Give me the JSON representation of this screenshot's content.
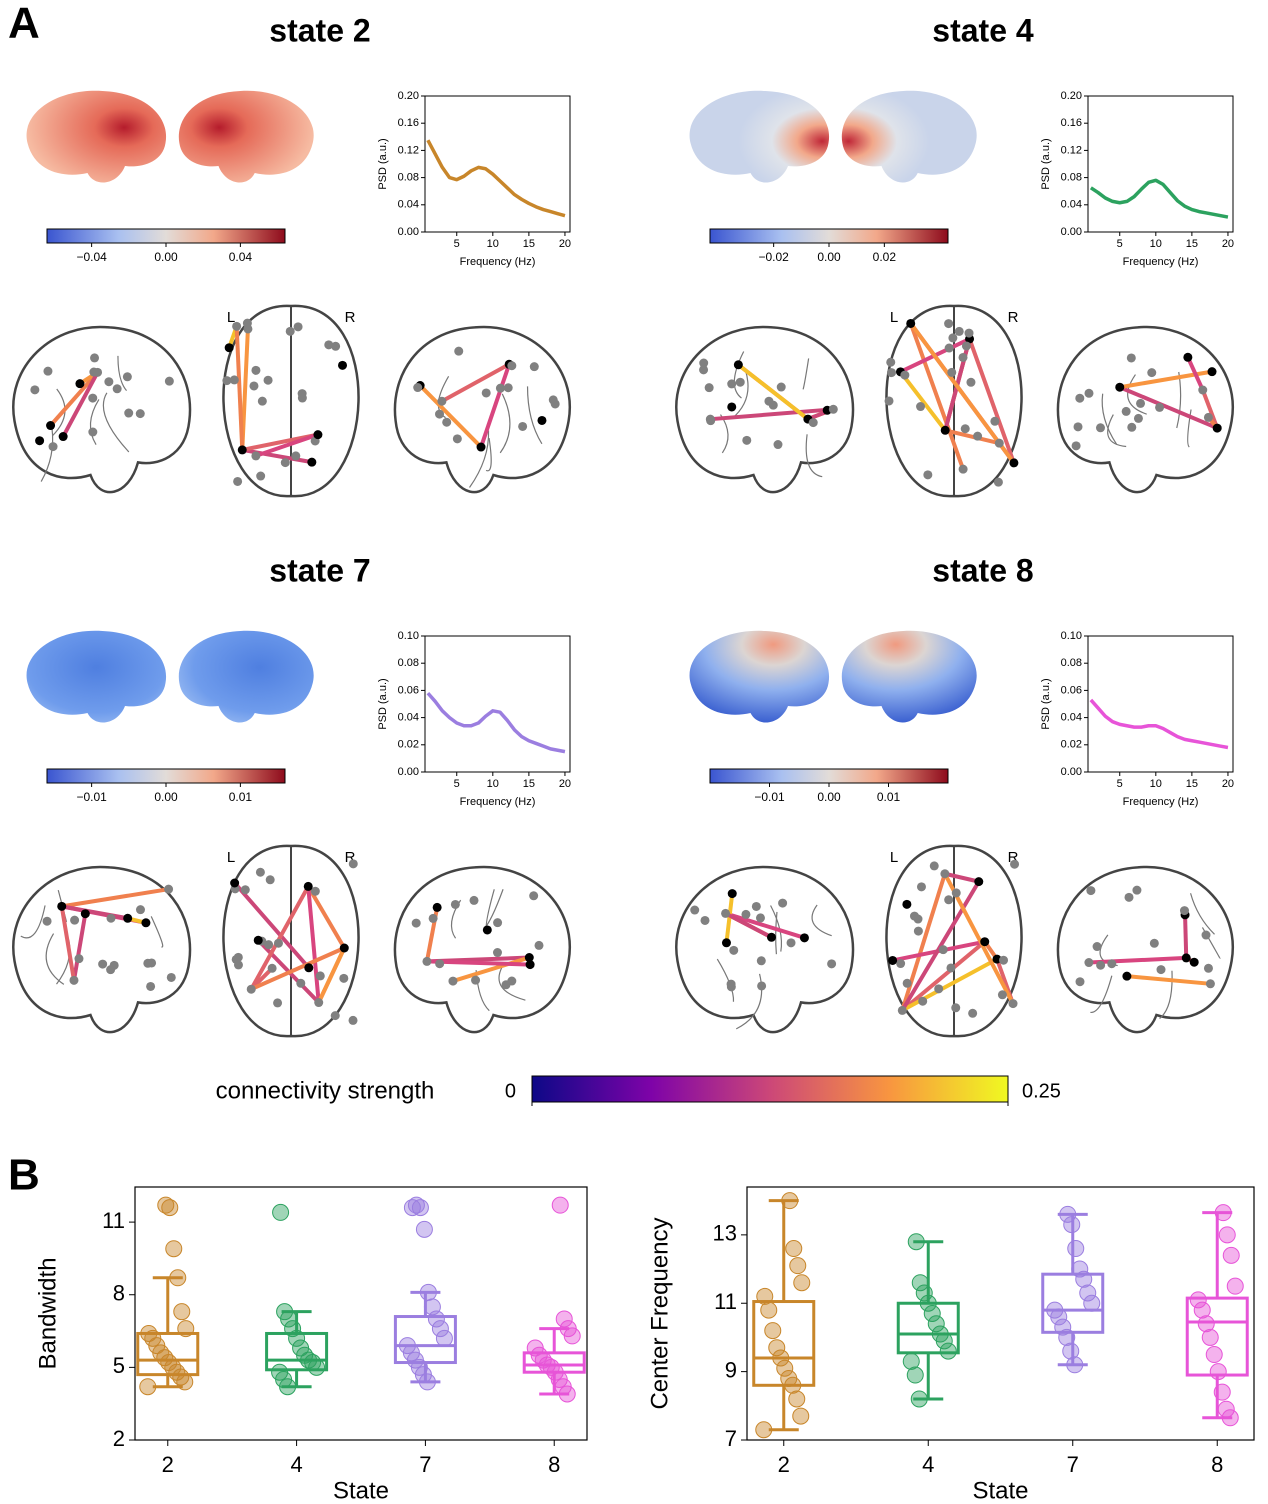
{
  "panel_labels": [
    "A",
    "B"
  ],
  "hemisphere_labels": [
    "L",
    "R"
  ],
  "connectivity_colorbar": {
    "label": "connectivity strength",
    "lim": [
      0,
      0.25
    ],
    "ticks": [
      0,
      0.25
    ]
  },
  "chart_data": [
    {
      "type": "line",
      "title": "state 2",
      "xlabel": "Frequency (Hz)",
      "ylabel": "PSD (a.u.)",
      "color": "#c8862a",
      "x": [
        1,
        2,
        3,
        4,
        5,
        6,
        7,
        8,
        9,
        10,
        11,
        12,
        13,
        14,
        15,
        16,
        17,
        18,
        19,
        20
      ],
      "values": [
        0.135,
        0.115,
        0.095,
        0.08,
        0.077,
        0.082,
        0.09,
        0.095,
        0.093,
        0.085,
        0.075,
        0.065,
        0.055,
        0.048,
        0.042,
        0.037,
        0.033,
        0.03,
        0.027,
        0.024
      ],
      "xlim": [
        0.6,
        20.7
      ],
      "xticks": [
        5,
        10,
        15,
        20
      ],
      "ylim": [
        0,
        0.2
      ],
      "yticks": [
        {
          "value": 0,
          "label": "0.00"
        },
        {
          "value": 0.04,
          "label": "0.04"
        },
        {
          "value": 0.08,
          "label": "0.08"
        },
        {
          "value": 0.12,
          "label": "0.12"
        },
        {
          "value": 0.16,
          "label": "0.16"
        },
        {
          "value": 0.2,
          "label": "0.20"
        }
      ],
      "colorbar": {
        "lim": [
          -0.064,
          0.064
        ],
        "ticks": [
          {
            "value": -0.04,
            "label": "−0.04"
          },
          {
            "value": 0,
            "label": "0.00"
          },
          {
            "value": 0.04,
            "label": "0.04"
          }
        ]
      }
    },
    {
      "type": "line",
      "title": "state 4",
      "xlabel": "Frequency (Hz)",
      "ylabel": "PSD (a.u.)",
      "color": "#2ca25f",
      "x": [
        1,
        2,
        3,
        4,
        5,
        6,
        7,
        8,
        9,
        10,
        11,
        12,
        13,
        14,
        15,
        16,
        17,
        18,
        19,
        20
      ],
      "values": [
        0.065,
        0.058,
        0.05,
        0.045,
        0.043,
        0.045,
        0.052,
        0.063,
        0.073,
        0.076,
        0.07,
        0.058,
        0.046,
        0.038,
        0.033,
        0.03,
        0.028,
        0.026,
        0.024,
        0.022
      ],
      "xlim": [
        0.6,
        20.7
      ],
      "xticks": [
        5,
        10,
        15,
        20
      ],
      "ylim": [
        0,
        0.2
      ],
      "yticks": [
        {
          "value": 0,
          "label": "0.00"
        },
        {
          "value": 0.04,
          "label": "0.04"
        },
        {
          "value": 0.08,
          "label": "0.08"
        },
        {
          "value": 0.12,
          "label": "0.12"
        },
        {
          "value": 0.16,
          "label": "0.16"
        },
        {
          "value": 0.2,
          "label": "0.20"
        }
      ],
      "colorbar": {
        "lim": [
          -0.043,
          0.043
        ],
        "ticks": [
          {
            "value": -0.02,
            "label": "−0.02"
          },
          {
            "value": 0,
            "label": "0.00"
          },
          {
            "value": 0.02,
            "label": "0.02"
          }
        ]
      }
    },
    {
      "type": "line",
      "title": "state 7",
      "xlabel": "Frequency (Hz)",
      "ylabel": "PSD (a.u.)",
      "color": "#9b7ee0",
      "x": [
        1,
        2,
        3,
        4,
        5,
        6,
        7,
        8,
        9,
        10,
        11,
        12,
        13,
        14,
        15,
        16,
        17,
        18,
        19,
        20
      ],
      "values": [
        0.058,
        0.052,
        0.045,
        0.04,
        0.036,
        0.034,
        0.034,
        0.036,
        0.041,
        0.045,
        0.044,
        0.038,
        0.031,
        0.026,
        0.023,
        0.021,
        0.019,
        0.017,
        0.016,
        0.015
      ],
      "xlim": [
        0.6,
        20.7
      ],
      "xticks": [
        5,
        10,
        15,
        20
      ],
      "ylim": [
        0,
        0.1
      ],
      "yticks": [
        {
          "value": 0,
          "label": "0.00"
        },
        {
          "value": 0.02,
          "label": "0.02"
        },
        {
          "value": 0.04,
          "label": "0.04"
        },
        {
          "value": 0.06,
          "label": "0.06"
        },
        {
          "value": 0.08,
          "label": "0.08"
        },
        {
          "value": 0.1,
          "label": "0.10"
        }
      ],
      "colorbar": {
        "lim": [
          -0.016,
          0.016
        ],
        "ticks": [
          {
            "value": -0.01,
            "label": "−0.01"
          },
          {
            "value": 0,
            "label": "0.00"
          },
          {
            "value": 0.01,
            "label": "0.01"
          }
        ]
      }
    },
    {
      "type": "line",
      "title": "state 8",
      "xlabel": "Frequency (Hz)",
      "ylabel": "PSD (a.u.)",
      "color": "#e754d8",
      "x": [
        1,
        2,
        3,
        4,
        5,
        6,
        7,
        8,
        9,
        10,
        11,
        12,
        13,
        14,
        15,
        16,
        17,
        18,
        19,
        20
      ],
      "values": [
        0.053,
        0.047,
        0.041,
        0.037,
        0.035,
        0.034,
        0.033,
        0.033,
        0.034,
        0.034,
        0.032,
        0.029,
        0.026,
        0.024,
        0.023,
        0.022,
        0.021,
        0.02,
        0.019,
        0.018
      ],
      "xlim": [
        0.6,
        20.7
      ],
      "xticks": [
        5,
        10,
        15,
        20
      ],
      "ylim": [
        0,
        0.1
      ],
      "yticks": [
        {
          "value": 0,
          "label": "0.00"
        },
        {
          "value": 0.02,
          "label": "0.02"
        },
        {
          "value": 0.04,
          "label": "0.04"
        },
        {
          "value": 0.06,
          "label": "0.06"
        },
        {
          "value": 0.08,
          "label": "0.08"
        },
        {
          "value": 0.1,
          "label": "0.10"
        }
      ],
      "colorbar": {
        "lim": [
          -0.02,
          0.02
        ],
        "ticks": [
          {
            "value": -0.01,
            "label": "−0.01"
          },
          {
            "value": 0,
            "label": "0.00"
          },
          {
            "value": 0.01,
            "label": "0.01"
          }
        ]
      }
    },
    {
      "type": "box",
      "xlabel": "State",
      "ylabel": "Bandwidth",
      "categories": [
        "2",
        "4",
        "7",
        "8"
      ],
      "colors": [
        "#c8862a",
        "#2ca25f",
        "#9b7ee0",
        "#e754d8"
      ],
      "ylim": [
        2,
        12.45
      ],
      "yticks": [
        2,
        5,
        8,
        11
      ],
      "boxes": [
        {
          "whislo": 4.2,
          "q1": 4.7,
          "med": 5.3,
          "q3": 6.4,
          "whishi": 8.7
        },
        {
          "whislo": 4.2,
          "q1": 4.9,
          "med": 5.3,
          "q3": 6.4,
          "whishi": 7.3
        },
        {
          "whislo": 4.4,
          "q1": 5.2,
          "med": 5.9,
          "q3": 7.1,
          "whishi": 8.1
        },
        {
          "whislo": 3.9,
          "q1": 4.8,
          "med": 5.1,
          "q3": 5.6,
          "whishi": 6.6
        }
      ],
      "points": [
        [
          4.2,
          4.4,
          4.6,
          4.8,
          5.0,
          5.2,
          5.4,
          5.6,
          5.9,
          6.2,
          6.4,
          6.6,
          7.3,
          8.7,
          9.9,
          11.6,
          11.7
        ],
        [
          4.2,
          4.5,
          4.8,
          5.0,
          5.2,
          5.3,
          5.5,
          5.8,
          6.2,
          6.6,
          7.0,
          7.3,
          11.4
        ],
        [
          4.4,
          4.7,
          5.0,
          5.3,
          5.6,
          5.9,
          6.2,
          6.6,
          7.0,
          7.5,
          8.1,
          10.7,
          11.6,
          11.7,
          11.6
        ],
        [
          3.9,
          4.2,
          4.5,
          4.8,
          5.0,
          5.1,
          5.3,
          5.5,
          5.8,
          6.3,
          6.6,
          7.0,
          11.7
        ]
      ]
    },
    {
      "type": "box",
      "xlabel": "State",
      "ylabel": "Center Frequency",
      "categories": [
        "2",
        "4",
        "7",
        "8"
      ],
      "colors": [
        "#c8862a",
        "#2ca25f",
        "#9b7ee0",
        "#e754d8"
      ],
      "ylim": [
        7,
        14.4
      ],
      "yticks": [
        7,
        9,
        11,
        13
      ],
      "boxes": [
        {
          "whislo": 7.3,
          "q1": 8.6,
          "med": 9.4,
          "q3": 11.05,
          "whishi": 14.0
        },
        {
          "whislo": 8.2,
          "q1": 9.55,
          "med": 10.1,
          "q3": 11.0,
          "whishi": 12.8
        },
        {
          "whislo": 9.2,
          "q1": 10.15,
          "med": 10.8,
          "q3": 11.85,
          "whishi": 13.6
        },
        {
          "whislo": 7.65,
          "q1": 8.9,
          "med": 10.45,
          "q3": 11.15,
          "whishi": 13.65
        }
      ],
      "points": [
        [
          7.3,
          7.7,
          8.2,
          8.6,
          8.8,
          9.1,
          9.4,
          9.7,
          10.2,
          10.8,
          11.2,
          11.6,
          12.1,
          12.6,
          14.0
        ],
        [
          8.2,
          8.9,
          9.3,
          9.6,
          9.9,
          10.1,
          10.4,
          10.7,
          11.0,
          11.3,
          11.6,
          12.8
        ],
        [
          9.2,
          9.6,
          10.0,
          10.3,
          10.6,
          10.8,
          11.0,
          11.3,
          11.7,
          12.0,
          12.6,
          13.3,
          13.6
        ],
        [
          7.65,
          7.9,
          8.4,
          9.0,
          9.5,
          10.0,
          10.4,
          10.8,
          11.1,
          11.5,
          12.4,
          13.0,
          13.65
        ]
      ]
    }
  ]
}
